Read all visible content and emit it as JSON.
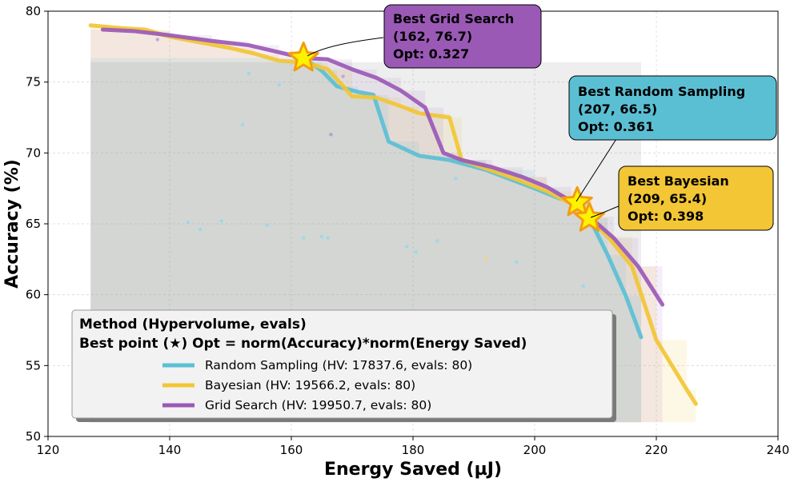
{
  "chart_data": {
    "type": "line",
    "xlabel": "Energy Saved (µJ)",
    "ylabel": "Accuracy (%)",
    "xlim": [
      120,
      240
    ],
    "ylim": [
      50,
      80
    ],
    "xticks": [
      120,
      140,
      160,
      180,
      200,
      220,
      240
    ],
    "yticks": [
      50,
      55,
      60,
      65,
      70,
      75,
      80
    ],
    "grid": true,
    "legend_position": "lower-left",
    "legend_title_line1": "Method (Hypervolume, evals)",
    "legend_title_line2": "Best point (★) Opt = norm(Accuracy)*norm(Energy Saved)",
    "series": [
      {
        "name": "Random Sampling (HV: 17837.6, evals: 80)",
        "color": "#5bbfd4",
        "frontier": [
          [
            162,
            76.7
          ],
          [
            165,
            75.8
          ],
          [
            167.5,
            74.7
          ],
          [
            171,
            74.3
          ],
          [
            173.5,
            74.1
          ],
          [
            176,
            70.8
          ],
          [
            181,
            69.8
          ],
          [
            186,
            69.5
          ],
          [
            192,
            68.8
          ],
          [
            200,
            67.5
          ],
          [
            204,
            66.8
          ],
          [
            207,
            66.5
          ],
          [
            209,
            65.4
          ],
          [
            212,
            62.8
          ],
          [
            215,
            59.9
          ],
          [
            217.5,
            57.0
          ]
        ],
        "best": {
          "x": 207,
          "y": 66.5,
          "opt": "0.361"
        },
        "best_label_line1": "Best Random Sampling",
        "best_label_line2": "(207, 66.5)",
        "best_label_line3": "Opt: 0.361"
      },
      {
        "name": "Bayesian (HV: 19566.2, evals: 80)",
        "color": "#f2c634",
        "frontier": [
          [
            127,
            79.0
          ],
          [
            132,
            78.8
          ],
          [
            136,
            78.7
          ],
          [
            140,
            78.2
          ],
          [
            145,
            77.8
          ],
          [
            150,
            77.4
          ],
          [
            154,
            77.0
          ],
          [
            158,
            76.5
          ],
          [
            162,
            76.4
          ],
          [
            166,
            75.9
          ],
          [
            170,
            74.0
          ],
          [
            174,
            73.9
          ],
          [
            178,
            73.3
          ],
          [
            181,
            72.8
          ],
          [
            186,
            72.5
          ],
          [
            188,
            69.5
          ],
          [
            192,
            68.9
          ],
          [
            196,
            68.3
          ],
          [
            202,
            67.3
          ],
          [
            207,
            66.2
          ],
          [
            209,
            65.4
          ],
          [
            212,
            64.1
          ],
          [
            216,
            62.0
          ],
          [
            220,
            56.8
          ],
          [
            225,
            53.3
          ],
          [
            226.5,
            52.3
          ]
        ],
        "best": {
          "x": 209,
          "y": 65.4,
          "opt": "0.398"
        },
        "best_label_line1": "Best Bayesian",
        "best_label_line2": "(209, 65.4)",
        "best_label_line3": "Opt: 0.398"
      },
      {
        "name": "Grid Search (HV: 19950.7, evals: 80)",
        "color": "#9b59b6",
        "frontier": [
          [
            129,
            78.7
          ],
          [
            134,
            78.6
          ],
          [
            140,
            78.3
          ],
          [
            147,
            77.9
          ],
          [
            153,
            77.6
          ],
          [
            158,
            77.1
          ],
          [
            162,
            76.7
          ],
          [
            166,
            76.6
          ],
          [
            170,
            75.9
          ],
          [
            174,
            75.3
          ],
          [
            178,
            74.4
          ],
          [
            182,
            73.2
          ],
          [
            185,
            70.0
          ],
          [
            188,
            69.5
          ],
          [
            193,
            69.0
          ],
          [
            198,
            68.3
          ],
          [
            202,
            67.6
          ],
          [
            206,
            66.6
          ],
          [
            209,
            65.5
          ],
          [
            213,
            64.0
          ],
          [
            217,
            62.0
          ],
          [
            221,
            59.3
          ]
        ],
        "best": {
          "x": 162,
          "y": 76.7,
          "opt": "0.327"
        },
        "best_label_line1": "Best Grid Search",
        "best_label_line2": "(162, 76.7)",
        "best_label_line3": "Opt: 0.327"
      }
    ],
    "scatter_points": [
      {
        "x": 138,
        "y": 78.0,
        "c": "#c9a4da"
      },
      {
        "x": 143,
        "y": 65.1,
        "c": "#9ed9e6"
      },
      {
        "x": 145,
        "y": 64.6,
        "c": "#9ed9e6"
      },
      {
        "x": 148.5,
        "y": 65.2,
        "c": "#9ed9e6"
      },
      {
        "x": 152,
        "y": 72.0,
        "c": "#9ed9e6"
      },
      {
        "x": 153,
        "y": 75.6,
        "c": "#9ed9e6"
      },
      {
        "x": 156,
        "y": 64.9,
        "c": "#9ed9e6"
      },
      {
        "x": 158,
        "y": 74.8,
        "c": "#9ed9e6"
      },
      {
        "x": 162,
        "y": 64.0,
        "c": "#9ed9e6"
      },
      {
        "x": 165,
        "y": 64.1,
        "c": "#9ed9e6"
      },
      {
        "x": 166,
        "y": 64.0,
        "c": "#9ed9e6"
      },
      {
        "x": 166.5,
        "y": 71.3,
        "c": "#b9a0c6"
      },
      {
        "x": 168.5,
        "y": 75.4,
        "c": "#c9a4da"
      },
      {
        "x": 179,
        "y": 63.4,
        "c": "#9ed9e6"
      },
      {
        "x": 180.5,
        "y": 63.0,
        "c": "#9ed9e6"
      },
      {
        "x": 184,
        "y": 63.8,
        "c": "#9ed9e6"
      },
      {
        "x": 187,
        "y": 68.2,
        "c": "#9ed9e6"
      },
      {
        "x": 192,
        "y": 62.5,
        "c": "#f2d57a"
      },
      {
        "x": 197,
        "y": 62.3,
        "c": "#9ed9e6"
      },
      {
        "x": 208,
        "y": 60.6,
        "c": "#9ed9e6"
      }
    ]
  }
}
